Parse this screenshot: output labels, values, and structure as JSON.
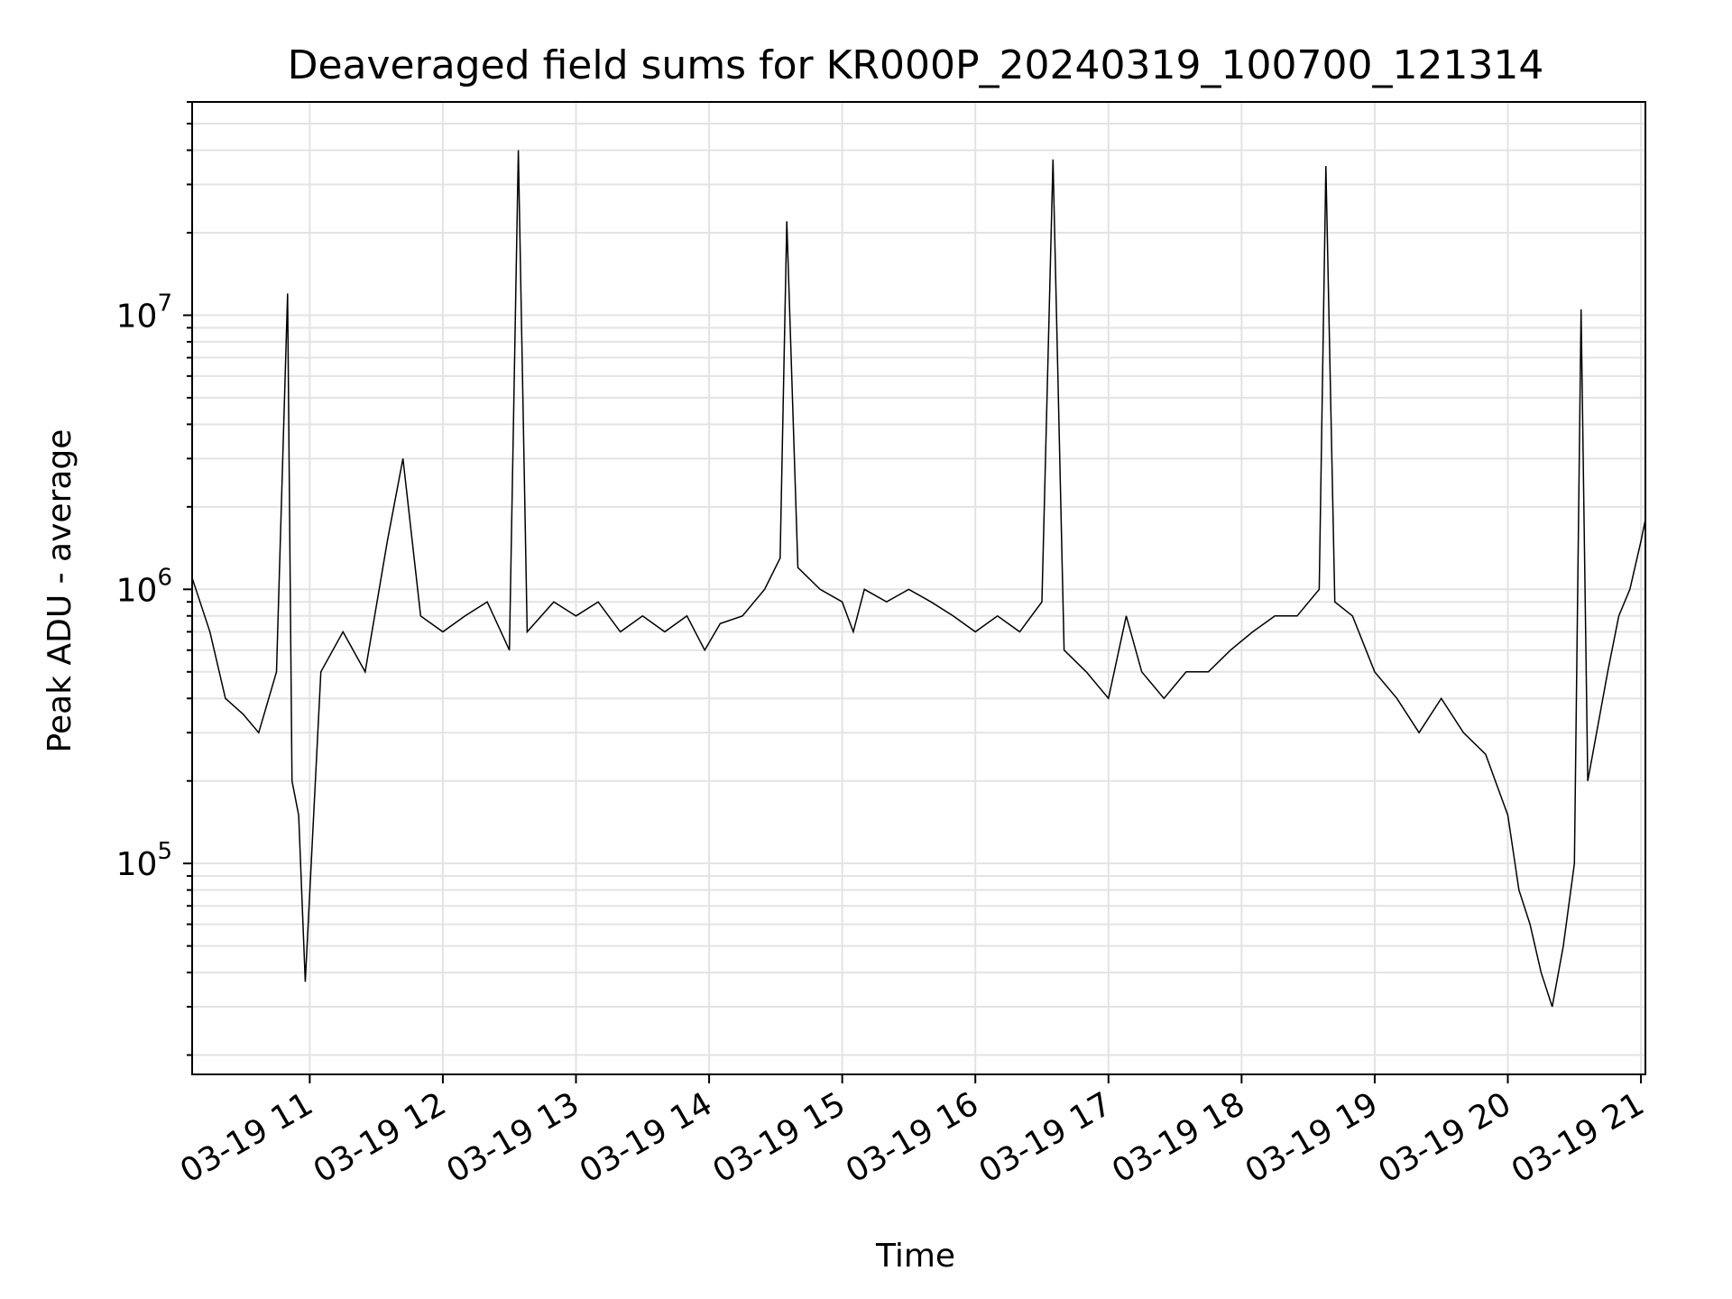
{
  "chart_data": {
    "type": "line",
    "title": "Deaveraged field sums for KR000P_20240319_100700_121314",
    "xlabel": "Time",
    "ylabel": "Peak ADU - average",
    "y_scale": "log",
    "ylim": [
      17000,
      60000000
    ],
    "xlim": [
      "2024-03-19 10:07",
      "2024-03-19 21:02"
    ],
    "x_ticks": [
      {
        "t": "2024-03-19 11:00",
        "label": "03-19 11"
      },
      {
        "t": "2024-03-19 12:00",
        "label": "03-19 12"
      },
      {
        "t": "2024-03-19 13:00",
        "label": "03-19 13"
      },
      {
        "t": "2024-03-19 14:00",
        "label": "03-19 14"
      },
      {
        "t": "2024-03-19 15:00",
        "label": "03-19 15"
      },
      {
        "t": "2024-03-19 16:00",
        "label": "03-19 16"
      },
      {
        "t": "2024-03-19 17:00",
        "label": "03-19 17"
      },
      {
        "t": "2024-03-19 18:00",
        "label": "03-19 18"
      },
      {
        "t": "2024-03-19 19:00",
        "label": "03-19 19"
      },
      {
        "t": "2024-03-19 20:00",
        "label": "03-19 20"
      },
      {
        "t": "2024-03-19 21:00",
        "label": "03-19 21"
      }
    ],
    "y_ticks": [
      {
        "value": 100000,
        "base": "10",
        "exp": "5"
      },
      {
        "value": 1000000,
        "base": "10",
        "exp": "6"
      },
      {
        "value": 10000000,
        "base": "10",
        "exp": "7"
      }
    ],
    "grid": true,
    "line_color": "#000000",
    "series": [
      {
        "x": [
          "2024-03-19 10:07",
          "2024-03-19 10:15",
          "2024-03-19 10:22",
          "2024-03-19 10:30",
          "2024-03-19 10:37",
          "2024-03-19 10:45",
          "2024-03-19 10:50",
          "2024-03-19 10:52",
          "2024-03-19 10:55",
          "2024-03-19 10:58",
          "2024-03-19 11:05",
          "2024-03-19 11:15",
          "2024-03-19 11:25",
          "2024-03-19 11:35",
          "2024-03-19 11:42",
          "2024-03-19 11:50",
          "2024-03-19 12:00",
          "2024-03-19 12:10",
          "2024-03-19 12:20",
          "2024-03-19 12:30",
          "2024-03-19 12:34",
          "2024-03-19 12:38",
          "2024-03-19 12:50",
          "2024-03-19 13:00",
          "2024-03-19 13:10",
          "2024-03-19 13:20",
          "2024-03-19 13:30",
          "2024-03-19 13:40",
          "2024-03-19 13:50",
          "2024-03-19 13:58",
          "2024-03-19 14:05",
          "2024-03-19 14:15",
          "2024-03-19 14:25",
          "2024-03-19 14:32",
          "2024-03-19 14:35",
          "2024-03-19 14:40",
          "2024-03-19 14:50",
          "2024-03-19 15:00",
          "2024-03-19 15:05",
          "2024-03-19 15:10",
          "2024-03-19 15:20",
          "2024-03-19 15:30",
          "2024-03-19 15:40",
          "2024-03-19 15:50",
          "2024-03-19 16:00",
          "2024-03-19 16:10",
          "2024-03-19 16:20",
          "2024-03-19 16:30",
          "2024-03-19 16:35",
          "2024-03-19 16:40",
          "2024-03-19 16:50",
          "2024-03-19 17:00",
          "2024-03-19 17:08",
          "2024-03-19 17:15",
          "2024-03-19 17:25",
          "2024-03-19 17:35",
          "2024-03-19 17:45",
          "2024-03-19 17:55",
          "2024-03-19 18:05",
          "2024-03-19 18:15",
          "2024-03-19 18:25",
          "2024-03-19 18:35",
          "2024-03-19 18:38",
          "2024-03-19 18:42",
          "2024-03-19 18:50",
          "2024-03-19 19:00",
          "2024-03-19 19:10",
          "2024-03-19 19:20",
          "2024-03-19 19:30",
          "2024-03-19 19:40",
          "2024-03-19 19:50",
          "2024-03-19 20:00",
          "2024-03-19 20:05",
          "2024-03-19 20:10",
          "2024-03-19 20:15",
          "2024-03-19 20:20",
          "2024-03-19 20:25",
          "2024-03-19 20:30",
          "2024-03-19 20:33",
          "2024-03-19 20:36",
          "2024-03-19 20:40",
          "2024-03-19 20:45",
          "2024-03-19 20:50",
          "2024-03-19 20:55",
          "2024-03-19 21:00",
          "2024-03-19 21:02"
        ],
        "y": [
          1100000,
          700000,
          400000,
          350000,
          300000,
          500000,
          12000000,
          200000,
          150000,
          37000,
          500000,
          700000,
          500000,
          1500000,
          3000000,
          800000,
          700000,
          800000,
          900000,
          600000,
          40000000,
          700000,
          900000,
          800000,
          900000,
          700000,
          800000,
          700000,
          800000,
          600000,
          750000,
          800000,
          1000000,
          1300000,
          22000000,
          1200000,
          1000000,
          900000,
          700000,
          1000000,
          900000,
          1000000,
          900000,
          800000,
          700000,
          800000,
          700000,
          900000,
          37000000,
          600000,
          500000,
          400000,
          800000,
          500000,
          400000,
          500000,
          500000,
          600000,
          700000,
          800000,
          800000,
          1000000,
          35000000,
          900000,
          800000,
          500000,
          400000,
          300000,
          400000,
          300000,
          250000,
          150000,
          80000,
          60000,
          40000,
          30000,
          50000,
          100000,
          10500000,
          200000,
          300000,
          500000,
          800000,
          1000000,
          1500000,
          1800000
        ]
      }
    ]
  }
}
